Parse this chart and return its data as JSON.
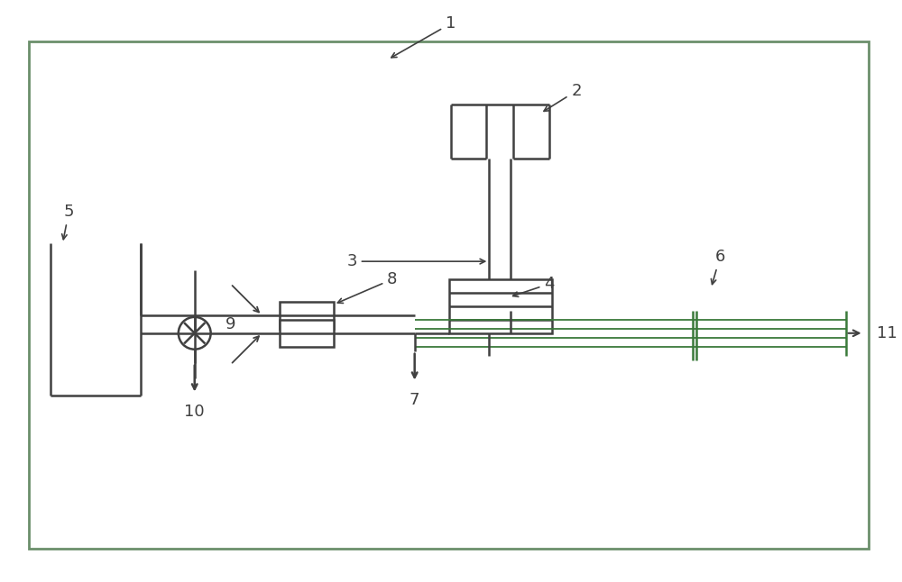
{
  "bg_color": "#ffffff",
  "border_color": "#6b8f6b",
  "line_color": "#404040",
  "green_color": "#3a7a3a",
  "fig_width": 10.0,
  "fig_height": 6.46,
  "dpi": 100
}
